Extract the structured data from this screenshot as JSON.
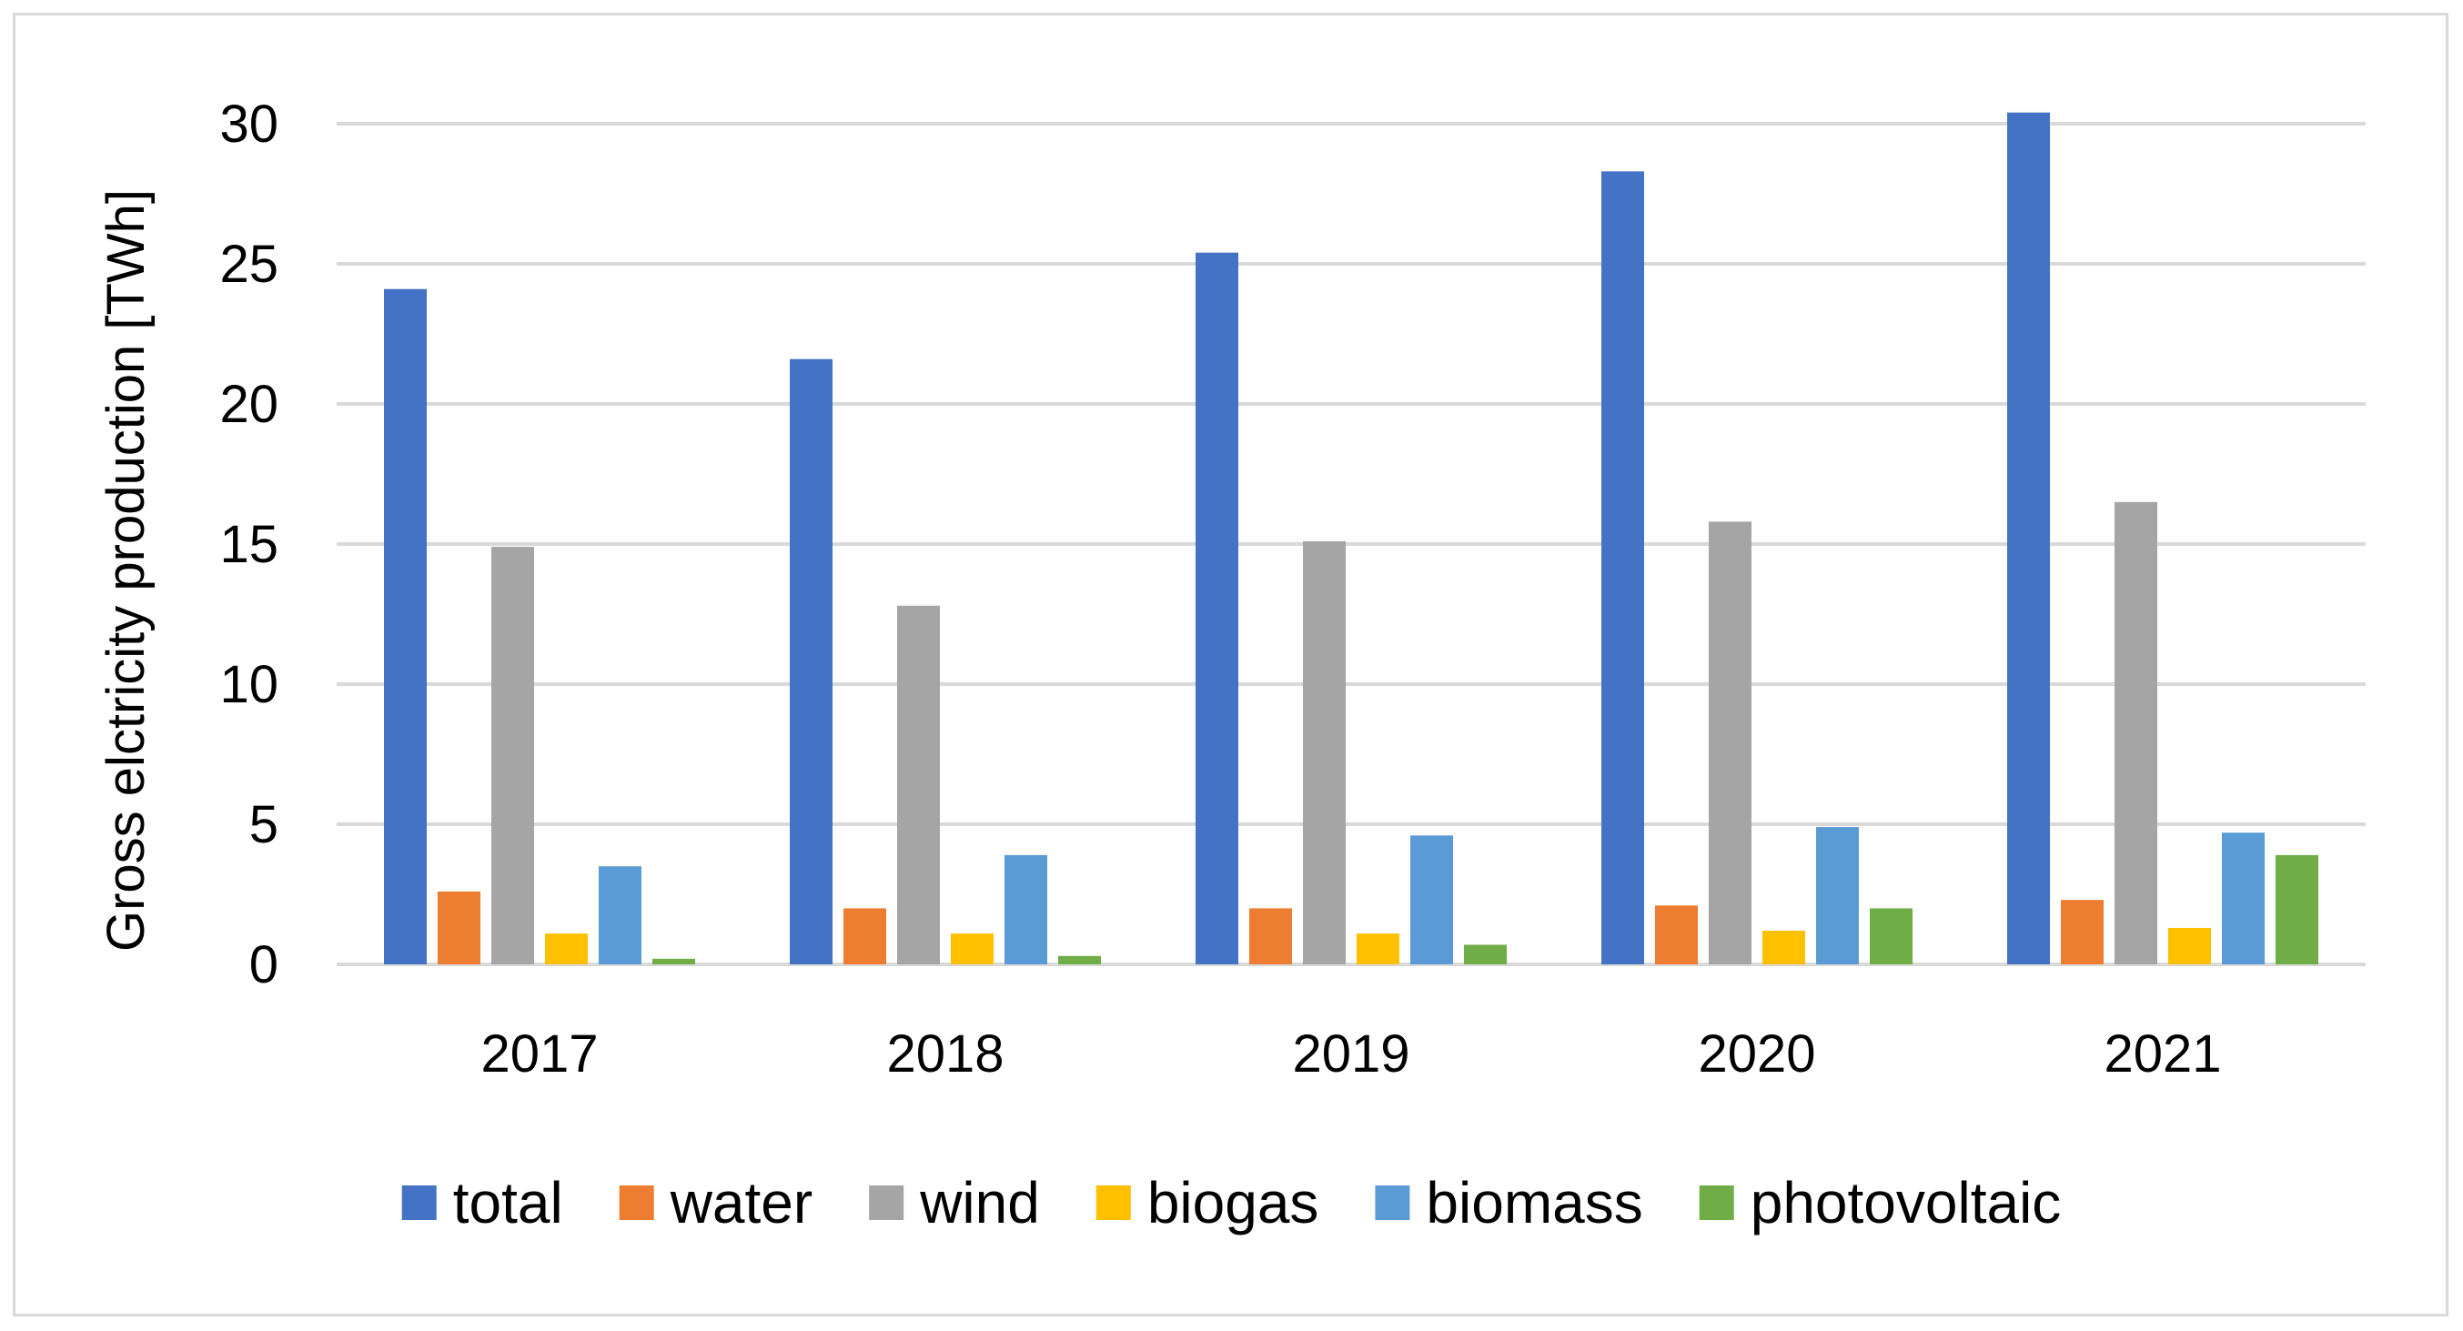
{
  "chart_data": {
    "type": "bar",
    "title": "",
    "xlabel": "",
    "ylabel": "Gross elctricity production [TWh]",
    "ylim": [
      0,
      30
    ],
    "yticks": [
      0,
      5,
      10,
      15,
      20,
      25,
      30
    ],
    "grid": true,
    "legend_position": "bottom",
    "categories": [
      "2017",
      "2018",
      "2019",
      "2020",
      "2021"
    ],
    "series": [
      {
        "name": "total",
        "color": "#4472C4",
        "values": [
          24.1,
          21.6,
          25.4,
          28.3,
          30.4
        ]
      },
      {
        "name": "water",
        "color": "#ED7D31",
        "values": [
          2.6,
          2.0,
          2.0,
          2.1,
          2.3
        ]
      },
      {
        "name": "wind",
        "color": "#A5A5A5",
        "values": [
          14.9,
          12.8,
          15.1,
          15.8,
          16.5
        ]
      },
      {
        "name": "biogas",
        "color": "#FFC000",
        "values": [
          1.1,
          1.1,
          1.1,
          1.2,
          1.3
        ]
      },
      {
        "name": "biomass",
        "color": "#5B9BD5",
        "values": [
          3.5,
          3.9,
          4.6,
          4.9,
          4.7
        ]
      },
      {
        "name": "photovoltaic",
        "color": "#70AD47",
        "values": [
          0.2,
          0.3,
          0.7,
          2.0,
          3.9
        ]
      }
    ]
  }
}
